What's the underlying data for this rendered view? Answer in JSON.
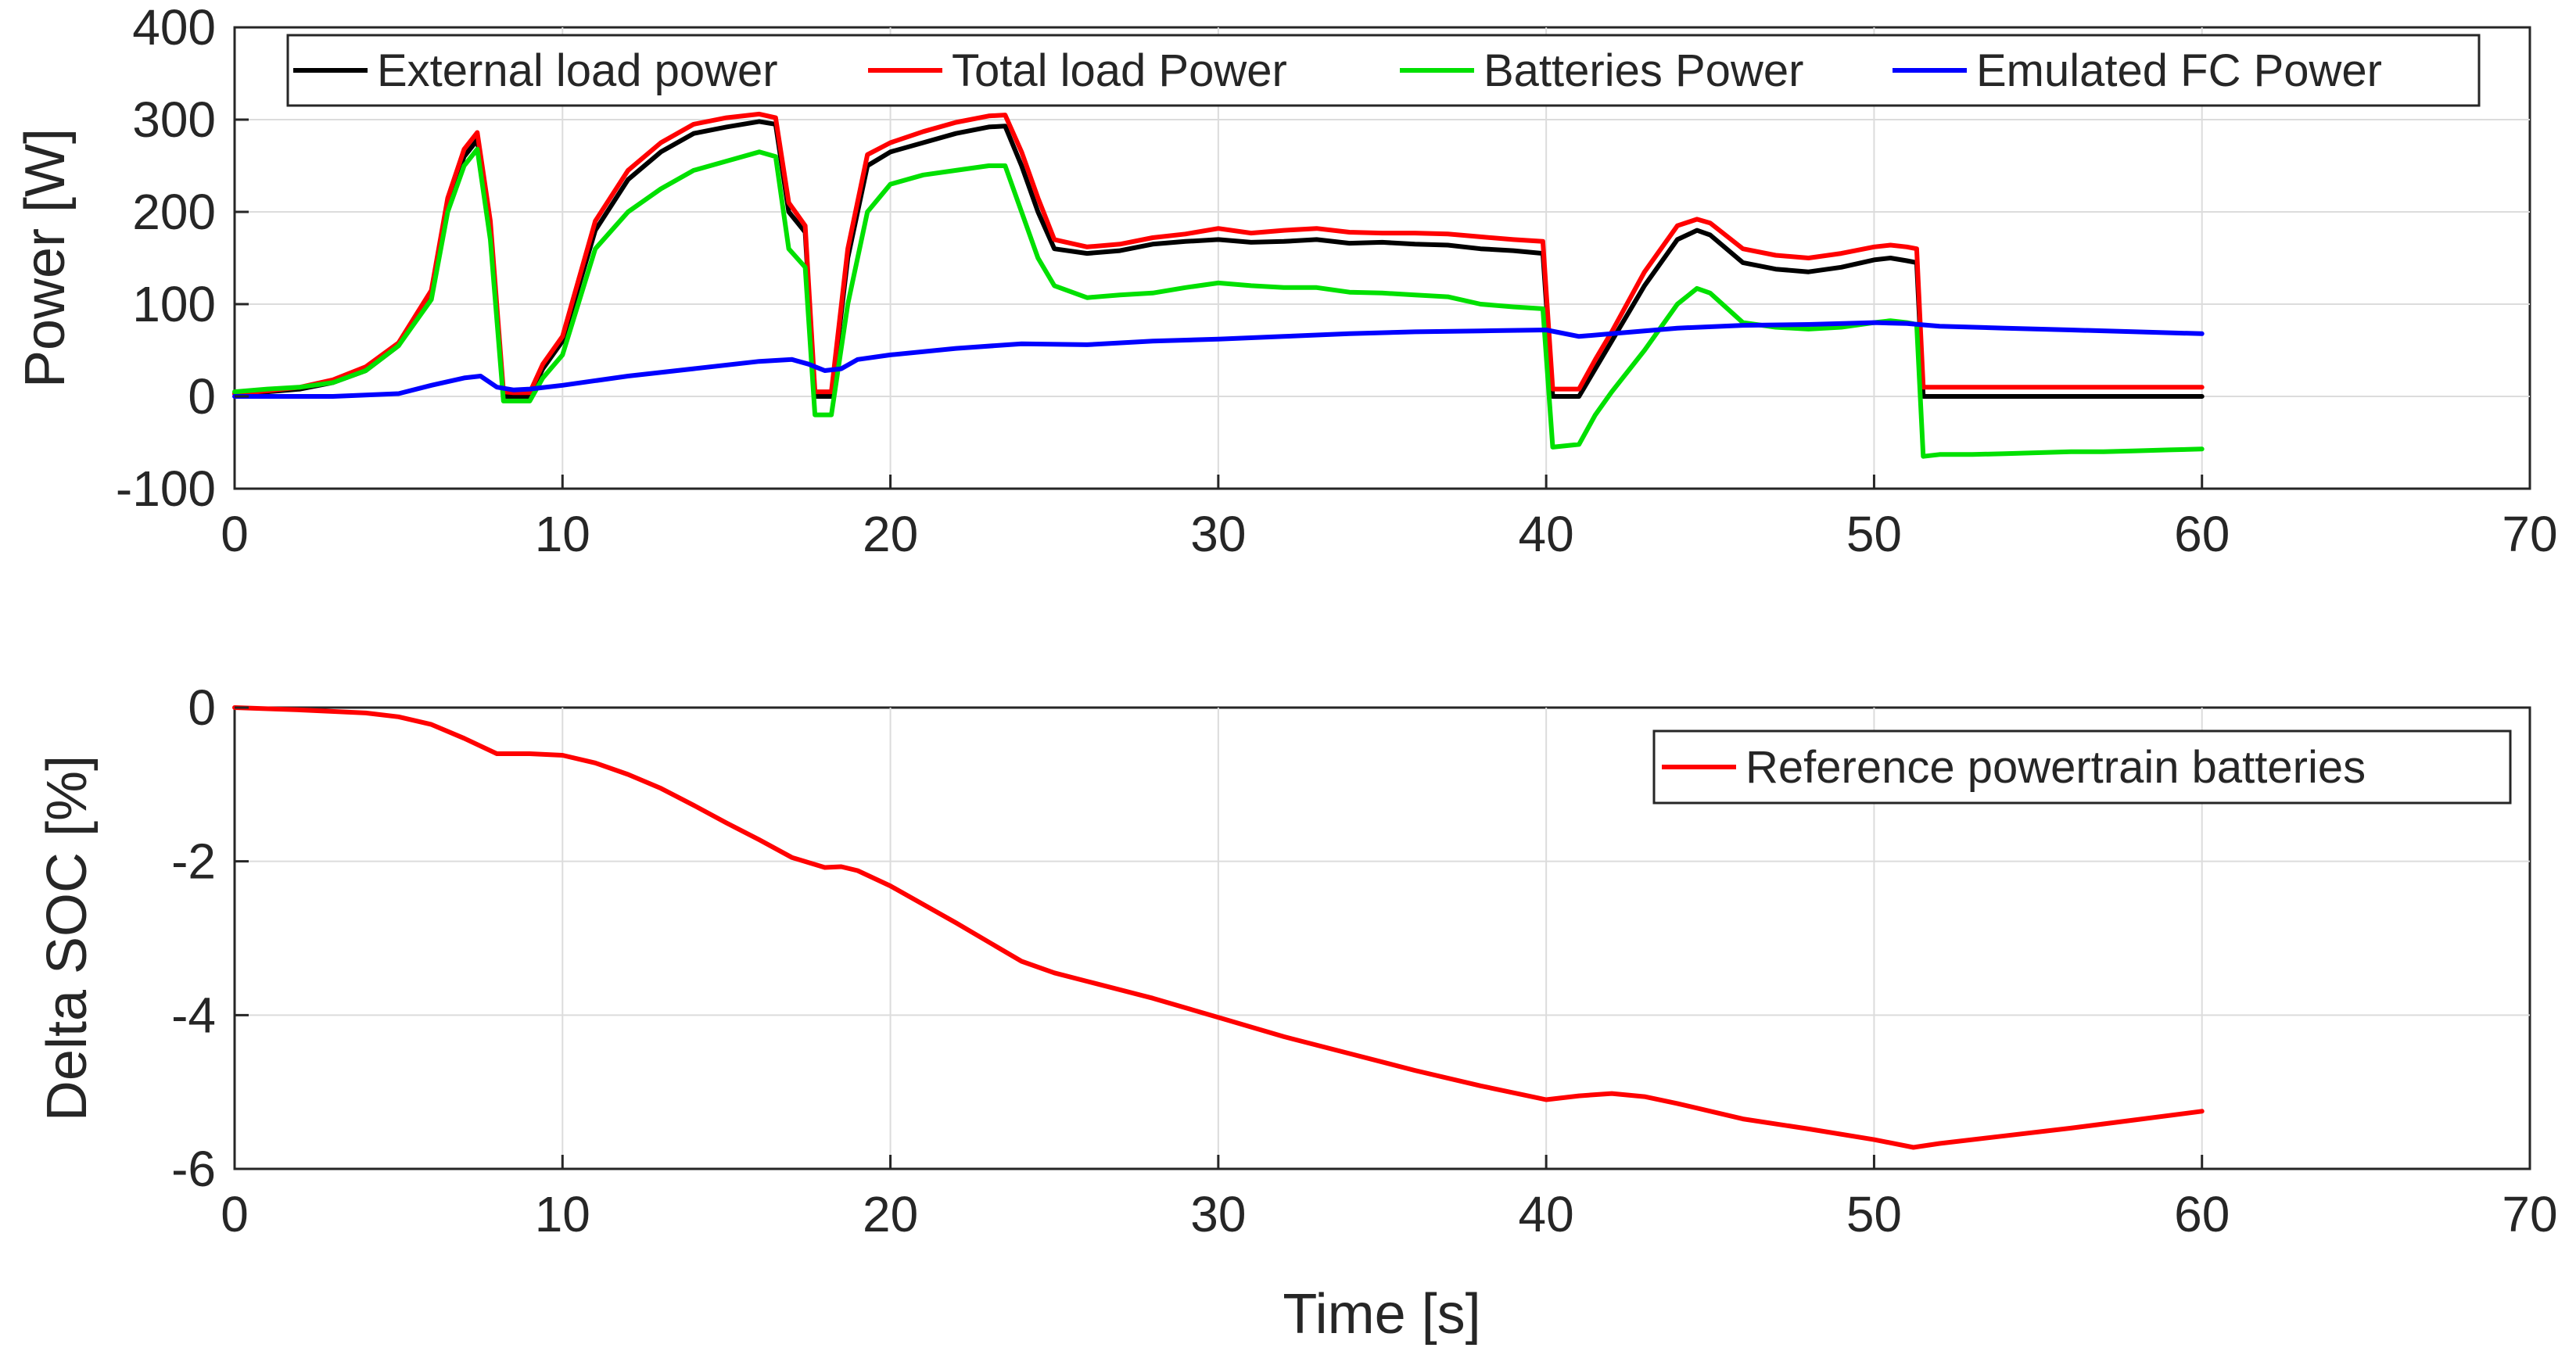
{
  "chart_data": [
    {
      "type": "line",
      "title": "",
      "xlabel": "",
      "ylabel": "Power [W]",
      "xlim": [
        0,
        70
      ],
      "ylim": [
        -100,
        400
      ],
      "grid": true,
      "legend_position": "top (horizontal)",
      "xticks": [
        "0",
        "10",
        "20",
        "30",
        "40",
        "50",
        "60",
        "70"
      ],
      "yticks": [
        "400",
        "300",
        "200",
        "100",
        "0",
        "-100"
      ],
      "series": [
        {
          "name": "External load power",
          "color": "#000000",
          "x": [
            0,
            1,
            2,
            3,
            4,
            5,
            6,
            6.5,
            7,
            7.4,
            7.8,
            8.2,
            8.5,
            9,
            9.4,
            10,
            11,
            12,
            13,
            14,
            15,
            16,
            16.5,
            16.9,
            17.4,
            17.7,
            18.2,
            18.7,
            19.3,
            20,
            21,
            22,
            23,
            23.5,
            24,
            24.5,
            25,
            26,
            27,
            28,
            29,
            30,
            31,
            32,
            33,
            34,
            35,
            36,
            37,
            38,
            39,
            39.9,
            40.2,
            41,
            41.5,
            42,
            43,
            44,
            44.6,
            45,
            46,
            47,
            48,
            49,
            50,
            50.5,
            51,
            51.3,
            51.5,
            52,
            53,
            54,
            55,
            56,
            57,
            58,
            59,
            60
          ],
          "values": [
            3,
            5,
            8,
            15,
            28,
            55,
            110,
            210,
            260,
            278,
            180,
            0,
            0,
            0,
            30,
            60,
            180,
            235,
            265,
            285,
            292,
            298,
            295,
            200,
            178,
            0,
            0,
            150,
            250,
            265,
            275,
            285,
            292,
            293,
            250,
            200,
            160,
            155,
            158,
            165,
            168,
            170,
            167,
            168,
            170,
            166,
            167,
            165,
            164,
            160,
            158,
            155,
            0,
            0,
            30,
            60,
            120,
            170,
            180,
            175,
            145,
            138,
            135,
            140,
            148,
            150,
            147,
            145,
            0,
            0,
            0,
            0,
            0,
            0,
            0,
            0,
            0,
            0
          ]
        },
        {
          "name": "Total load Power",
          "color": "#ff0000",
          "x": [
            0,
            1,
            2,
            3,
            4,
            5,
            6,
            6.5,
            7,
            7.4,
            7.8,
            8.2,
            8.5,
            9,
            9.4,
            10,
            11,
            12,
            13,
            14,
            15,
            16,
            16.5,
            16.9,
            17.4,
            17.7,
            18.2,
            18.7,
            19.3,
            20,
            21,
            22,
            23,
            23.5,
            24,
            24.5,
            25,
            26,
            27,
            28,
            29,
            30,
            31,
            32,
            33,
            34,
            35,
            36,
            37,
            38,
            39,
            39.9,
            40.2,
            41,
            41.5,
            42,
            43,
            44,
            44.6,
            45,
            46,
            47,
            48,
            49,
            50,
            50.5,
            51,
            51.3,
            51.5,
            52,
            53,
            54,
            55,
            56,
            57,
            58,
            59,
            60
          ],
          "values": [
            3,
            6,
            10,
            18,
            32,
            58,
            115,
            215,
            268,
            286,
            190,
            5,
            4,
            4,
            35,
            65,
            190,
            245,
            275,
            295,
            302,
            306,
            302,
            210,
            185,
            5,
            5,
            160,
            262,
            275,
            287,
            297,
            304,
            305,
            265,
            215,
            170,
            162,
            165,
            172,
            176,
            182,
            177,
            180,
            182,
            178,
            177,
            177,
            176,
            173,
            170,
            168,
            8,
            8,
            40,
            70,
            135,
            185,
            192,
            188,
            160,
            153,
            150,
            155,
            162,
            164,
            162,
            160,
            10,
            10,
            10,
            10,
            10,
            10,
            10,
            10,
            10,
            10
          ]
        },
        {
          "name": "Batteries Power",
          "color": "#00e000",
          "x": [
            0,
            1,
            2,
            3,
            4,
            5,
            6,
            6.5,
            7,
            7.4,
            7.8,
            8.2,
            8.5,
            9,
            9.4,
            10,
            11,
            12,
            13,
            14,
            15,
            16,
            16.5,
            16.9,
            17.4,
            17.7,
            18.2,
            18.7,
            19.3,
            20,
            21,
            22,
            23,
            23.5,
            24,
            24.5,
            25,
            26,
            27,
            28,
            29,
            30,
            31,
            32,
            33,
            34,
            35,
            36,
            37,
            38,
            39,
            39.9,
            40.2,
            41,
            41.5,
            42,
            43,
            44,
            44.6,
            45,
            46,
            47,
            48,
            49,
            50,
            50.5,
            51,
            51.3,
            51.5,
            52,
            53,
            54,
            55,
            56,
            57,
            58,
            59,
            60
          ],
          "values": [
            5,
            8,
            10,
            15,
            28,
            55,
            105,
            200,
            250,
            268,
            170,
            -5,
            -5,
            -5,
            20,
            45,
            160,
            200,
            225,
            245,
            255,
            265,
            260,
            160,
            140,
            -20,
            -20,
            100,
            200,
            230,
            240,
            245,
            250,
            250,
            200,
            150,
            120,
            107,
            110,
            112,
            118,
            123,
            120,
            118,
            118,
            113,
            112,
            110,
            108,
            100,
            97,
            95,
            -55,
            -52,
            -20,
            5,
            50,
            100,
            117,
            112,
            80,
            75,
            73,
            75,
            80,
            82,
            80,
            78,
            -65,
            -63,
            -63,
            -62,
            -61,
            -60,
            -60,
            -59,
            -58,
            -57
          ]
        },
        {
          "name": "Emulated FC Power",
          "color": "#0000ff",
          "x": [
            0,
            3,
            5,
            6,
            7,
            7.5,
            8,
            8.5,
            9,
            10,
            12,
            14,
            16,
            17,
            17.5,
            18,
            18.5,
            19,
            20,
            22,
            24,
            26,
            28,
            30,
            32,
            34,
            36,
            38,
            40,
            41,
            42,
            44,
            46,
            48,
            50,
            51,
            52,
            54,
            56,
            58,
            60
          ],
          "values": [
            0,
            0,
            3,
            12,
            20,
            22,
            10,
            7,
            8,
            12,
            22,
            30,
            38,
            40,
            35,
            28,
            30,
            40,
            45,
            52,
            57,
            56,
            60,
            62,
            65,
            68,
            70,
            71,
            72,
            65,
            68,
            74,
            77,
            78,
            80,
            79,
            76,
            74,
            72,
            70,
            68
          ]
        }
      ]
    },
    {
      "type": "line",
      "title": "",
      "xlabel": "Time [s]",
      "ylabel": "Delta SOC [%]",
      "xlim": [
        0,
        70
      ],
      "ylim": [
        -6,
        0
      ],
      "grid": true,
      "legend_position": "top-right",
      "xticks": [
        "0",
        "10",
        "20",
        "30",
        "40",
        "50",
        "60",
        "70"
      ],
      "yticks": [
        "0",
        "-2",
        "-4",
        "-6"
      ],
      "series": [
        {
          "name": "Reference powertrain batteries",
          "color": "#ff0000",
          "x": [
            0,
            2,
            4,
            5,
            6,
            7,
            8,
            9,
            10,
            11,
            12,
            13,
            14,
            15,
            16,
            17,
            18,
            18.5,
            19,
            20,
            22,
            24,
            25,
            26,
            28,
            30,
            32,
            34,
            36,
            38,
            40,
            41,
            42,
            43,
            44,
            46,
            48,
            50,
            51.2,
            52,
            54,
            56,
            58,
            60
          ],
          "values": [
            0,
            -0.03,
            -0.07,
            -0.12,
            -0.22,
            -0.4,
            -0.6,
            -0.6,
            -0.62,
            -0.72,
            -0.87,
            -1.05,
            -1.27,
            -1.5,
            -1.72,
            -1.95,
            -2.08,
            -2.07,
            -2.12,
            -2.32,
            -2.8,
            -3.3,
            -3.45,
            -3.56,
            -3.78,
            -4.03,
            -4.28,
            -4.5,
            -4.72,
            -4.92,
            -5.1,
            -5.05,
            -5.02,
            -5.06,
            -5.15,
            -5.35,
            -5.48,
            -5.62,
            -5.72,
            -5.67,
            -5.57,
            -5.47,
            -5.36,
            -5.25
          ]
        }
      ]
    }
  ]
}
